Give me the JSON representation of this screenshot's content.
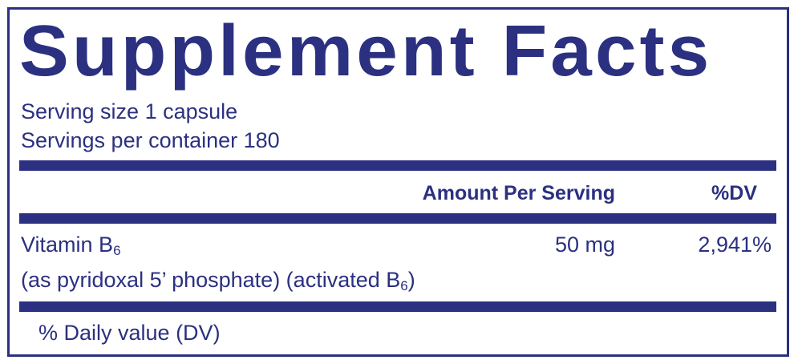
{
  "title": "Supplement Facts",
  "serving_size": "Serving size  1 capsule",
  "servings_per_container": "Servings per container  180",
  "table": {
    "headers": {
      "amount": "Amount Per Serving",
      "dv": "%DV"
    },
    "rows": [
      {
        "name": "Vitamin B",
        "name_sub": "6",
        "source": "(as pyridoxal 5’ phosphate) (activated B",
        "source_sub": "6",
        "source_end": ")",
        "amount": "50 mg",
        "dv": "2,941%"
      }
    ]
  },
  "footnote": "% Daily value (DV)",
  "colors": {
    "ink": "#2b3080",
    "background": "#ffffff"
  }
}
